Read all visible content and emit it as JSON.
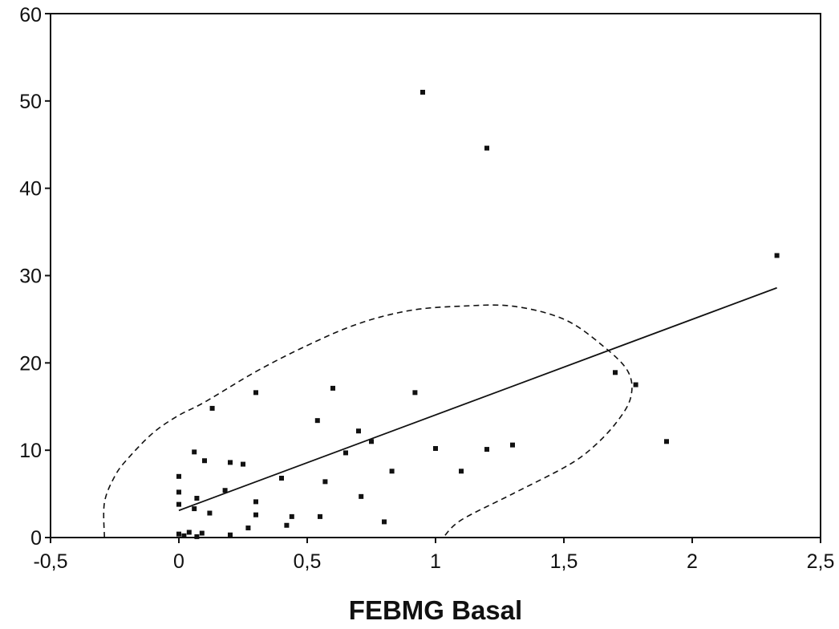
{
  "chart_data": {
    "type": "scatter",
    "title": "",
    "xlabel": "FEBMG Basal",
    "ylabel": "",
    "xlim": [
      -0.5,
      2.5
    ],
    "ylim": [
      0,
      60
    ],
    "x_ticks": [
      "-0,5",
      "0",
      "0,5",
      "1",
      "1,5",
      "2",
      "2,5"
    ],
    "x_tick_values": [
      -0.5,
      0,
      0.5,
      1,
      1.5,
      2,
      2.5
    ],
    "y_ticks": [
      "0",
      "10",
      "20",
      "30",
      "40",
      "50",
      "60"
    ],
    "y_tick_values": [
      0,
      10,
      20,
      30,
      40,
      50,
      60
    ],
    "grid": false,
    "legend": "none",
    "series": [
      {
        "kind": "points",
        "marker": "square",
        "color": "#111111",
        "points": [
          [
            0.0,
            0.4
          ],
          [
            0.02,
            0.2
          ],
          [
            0.04,
            0.6
          ],
          [
            0.07,
            0.1
          ],
          [
            0.09,
            0.5
          ],
          [
            0.2,
            0.3
          ],
          [
            0.0,
            7.0
          ],
          [
            0.0,
            5.2
          ],
          [
            0.0,
            3.8
          ],
          [
            0.06,
            3.3
          ],
          [
            0.07,
            4.5
          ],
          [
            0.06,
            9.8
          ],
          [
            0.1,
            8.8
          ],
          [
            0.12,
            2.8
          ],
          [
            0.13,
            14.8
          ],
          [
            0.18,
            5.4
          ],
          [
            0.2,
            8.6
          ],
          [
            0.25,
            8.4
          ],
          [
            0.27,
            1.1
          ],
          [
            0.3,
            2.6
          ],
          [
            0.3,
            4.1
          ],
          [
            0.3,
            16.6
          ],
          [
            0.4,
            6.8
          ],
          [
            0.42,
            1.4
          ],
          [
            0.44,
            2.4
          ],
          [
            0.54,
            13.4
          ],
          [
            0.55,
            2.4
          ],
          [
            0.57,
            6.4
          ],
          [
            0.6,
            17.1
          ],
          [
            0.65,
            9.7
          ],
          [
            0.7,
            12.2
          ],
          [
            0.71,
            4.7
          ],
          [
            0.75,
            11.0
          ],
          [
            0.8,
            1.8
          ],
          [
            0.83,
            7.6
          ],
          [
            0.92,
            16.6
          ],
          [
            0.95,
            51.0
          ],
          [
            1.0,
            10.2
          ],
          [
            1.1,
            7.6
          ],
          [
            1.2,
            10.1
          ],
          [
            1.2,
            44.6
          ],
          [
            1.3,
            10.6
          ],
          [
            1.7,
            18.9
          ],
          [
            1.78,
            17.5
          ],
          [
            1.9,
            11.0
          ],
          [
            2.33,
            32.3
          ]
        ]
      },
      {
        "kind": "regression-line",
        "color": "#111111",
        "line": [
          [
            0.0,
            3.1
          ],
          [
            2.33,
            28.6
          ]
        ]
      },
      {
        "kind": "confidence-ellipse",
        "color": "#111111",
        "dashed": true,
        "path": [
          [
            -0.29,
            0.0
          ],
          [
            -0.29,
            4.0
          ],
          [
            -0.25,
            7.0
          ],
          [
            -0.2,
            9.0
          ],
          [
            -0.1,
            12.0
          ],
          [
            0.0,
            14.0
          ],
          [
            0.1,
            15.5
          ],
          [
            0.3,
            19.0
          ],
          [
            0.5,
            22.0
          ],
          [
            0.7,
            24.5
          ],
          [
            0.9,
            26.0
          ],
          [
            1.1,
            26.5
          ],
          [
            1.3,
            26.5
          ],
          [
            1.5,
            25.0
          ],
          [
            1.65,
            22.0
          ],
          [
            1.75,
            19.0
          ],
          [
            1.76,
            16.0
          ],
          [
            1.7,
            13.0
          ],
          [
            1.6,
            10.0
          ],
          [
            1.5,
            8.0
          ],
          [
            1.3,
            5.0
          ],
          [
            1.1,
            2.0
          ],
          [
            1.03,
            0.0
          ]
        ]
      }
    ]
  }
}
